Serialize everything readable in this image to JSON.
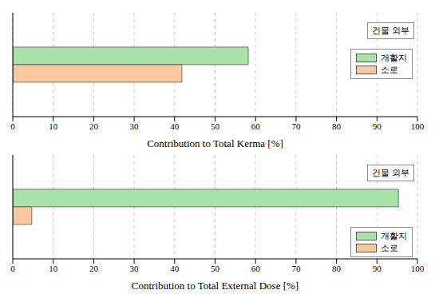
{
  "chart_data": [
    {
      "type": "bar",
      "orientation": "horizontal",
      "title": "건물 외부",
      "xlabel": "Contribution to Total Kerma [%]",
      "categories": [
        null
      ],
      "series": [
        {
          "name": "개활지",
          "color": "#a9e2a9",
          "values": [
            58.2
          ]
        },
        {
          "name": "소로",
          "color": "#f9c89e",
          "values": [
            41.8
          ]
        }
      ],
      "xlim": [
        0,
        100
      ],
      "xticks": [
        0,
        10,
        20,
        30,
        40,
        50,
        60,
        70,
        80,
        90,
        100
      ],
      "grid": true,
      "legend": "right",
      "tick_labels": "x"
    },
    {
      "type": "bar",
      "orientation": "horizontal",
      "title": "건물 외부",
      "xlabel": "Contribution to Total External Dose [%]",
      "categories": [
        null
      ],
      "series": [
        {
          "name": "개활지",
          "color": "#a9e2a9",
          "values": [
            95.3
          ]
        },
        {
          "name": "소로",
          "color": "#f9c89e",
          "values": [
            4.7
          ]
        }
      ],
      "xlim": [
        0,
        100
      ],
      "xticks": [
        0,
        10,
        20,
        30,
        40,
        50,
        60,
        70,
        80,
        90,
        100
      ],
      "grid": true,
      "legend": "lower right",
      "tick_labels": "x"
    }
  ]
}
